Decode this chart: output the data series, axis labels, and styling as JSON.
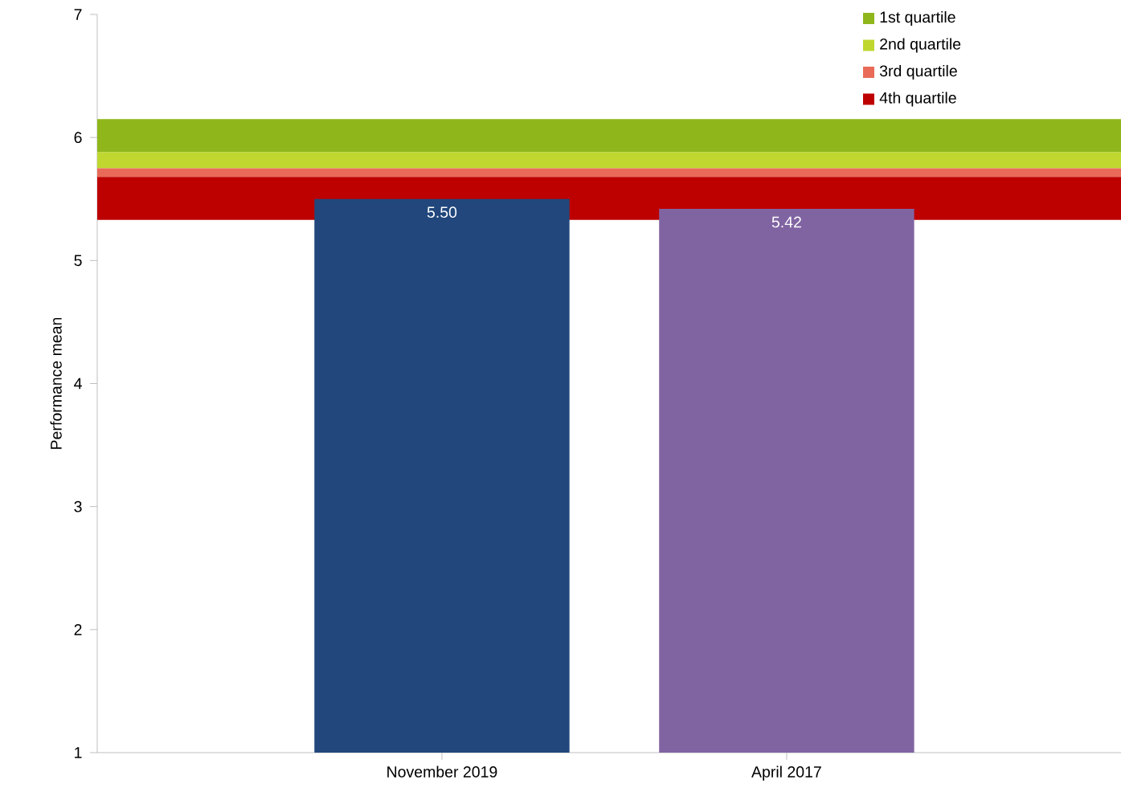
{
  "chart_data": {
    "type": "bar",
    "ylabel": "Performance mean",
    "categories": [
      "November 2019",
      "April 2017"
    ],
    "values": [
      5.5,
      5.42
    ],
    "colors": [
      "#21477c",
      "#8064a2"
    ],
    "value_labels": [
      "5.50",
      "5.42"
    ],
    "ylim": [
      1,
      7
    ],
    "yticks": [
      1,
      2,
      3,
      4,
      5,
      6,
      7
    ],
    "bands": [
      {
        "axis": "y",
        "from": 5.88,
        "to": 6.15,
        "label": "1st quartile",
        "color": "#8fb71b"
      },
      {
        "axis": "y",
        "from": 5.75,
        "to": 5.88,
        "label": "2nd quartile",
        "color": "#bfd72e"
      },
      {
        "axis": "y",
        "from": 5.68,
        "to": 5.75,
        "label": "3rd quartile",
        "color": "#e96a58"
      },
      {
        "axis": "y",
        "from": 5.33,
        "to": 5.68,
        "label": "4th quartile",
        "color": "#bd0000"
      }
    ],
    "legend": "top right",
    "grid": false
  }
}
